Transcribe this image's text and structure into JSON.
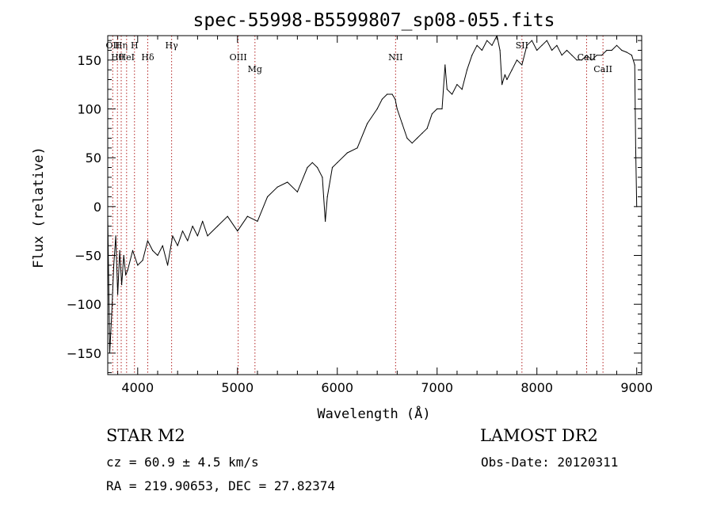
{
  "chart_data": {
    "type": "line",
    "title": "spec-55998-B5599807_sp08-055.fits",
    "xlabel": "Wavelength (Å)",
    "ylabel": "Flux (relative)",
    "xlim": [
      3700,
      9050
    ],
    "ylim": [
      -172,
      175
    ],
    "xticks": [
      4000,
      5000,
      6000,
      7000,
      8000,
      9000
    ],
    "yticks": [
      -150,
      -100,
      -50,
      0,
      50,
      100,
      150
    ],
    "grid": false,
    "series_color": "#000000",
    "line_color": "#b22222",
    "x": [
      3700,
      3720,
      3740,
      3760,
      3780,
      3800,
      3820,
      3840,
      3860,
      3880,
      3900,
      3950,
      4000,
      4050,
      4100,
      4150,
      4200,
      4250,
      4300,
      4350,
      4400,
      4450,
      4500,
      4550,
      4600,
      4650,
      4700,
      4800,
      4900,
      5000,
      5100,
      5200,
      5300,
      5400,
      5500,
      5600,
      5700,
      5750,
      5800,
      5850,
      5880,
      5900,
      5950,
      6000,
      6100,
      6200,
      6300,
      6400,
      6450,
      6500,
      6550,
      6580,
      6600,
      6650,
      6700,
      6750,
      6800,
      6850,
      6900,
      6950,
      7000,
      7050,
      7080,
      7100,
      7150,
      7200,
      7250,
      7300,
      7350,
      7400,
      7450,
      7500,
      7550,
      7600,
      7630,
      7650,
      7680,
      7700,
      7750,
      7800,
      7850,
      7900,
      7950,
      8000,
      8050,
      8100,
      8150,
      8200,
      8250,
      8300,
      8350,
      8400,
      8450,
      8500,
      8550,
      8600,
      8650,
      8700,
      8750,
      8800,
      8850,
      8900,
      8950,
      8980,
      8990,
      9000
    ],
    "y": [
      -10,
      -150,
      -110,
      -60,
      -30,
      -90,
      -45,
      -80,
      -50,
      -70,
      -65,
      -45,
      -60,
      -55,
      -35,
      -45,
      -50,
      -40,
      -60,
      -30,
      -40,
      -25,
      -35,
      -20,
      -30,
      -15,
      -30,
      -20,
      -10,
      -25,
      -10,
      -15,
      10,
      20,
      25,
      15,
      40,
      45,
      40,
      30,
      -15,
      10,
      40,
      45,
      55,
      60,
      85,
      100,
      110,
      115,
      115,
      110,
      100,
      85,
      70,
      65,
      70,
      75,
      80,
      95,
      100,
      100,
      145,
      120,
      115,
      125,
      120,
      140,
      155,
      165,
      160,
      170,
      165,
      175,
      160,
      125,
      135,
      130,
      140,
      150,
      145,
      165,
      170,
      160,
      165,
      170,
      160,
      165,
      155,
      160,
      155,
      150,
      150,
      155,
      150,
      155,
      155,
      160,
      160,
      165,
      160,
      158,
      155,
      145,
      60,
      0
    ],
    "lines": [
      {
        "wl": 3750,
        "label": "OII"
      },
      {
        "wl": 3797,
        "label": "Hθ"
      },
      {
        "wl": 3835,
        "label": "Hη"
      },
      {
        "wl": 3889,
        "label": "HeI"
      },
      {
        "wl": 3968,
        "label": "H"
      },
      {
        "wl": 4101,
        "label": "Hδ"
      },
      {
        "wl": 4340,
        "label": "Hγ"
      },
      {
        "wl": 5007,
        "label": "OIII"
      },
      {
        "wl": 5175,
        "label": "Mg"
      },
      {
        "wl": 6584,
        "label": "NII"
      },
      {
        "wl": 7850,
        "label": "SII"
      },
      {
        "wl": 8498,
        "label": "CaII"
      },
      {
        "wl": 8662,
        "label": "CaII"
      }
    ]
  },
  "footer": {
    "class_label": "STAR    M2",
    "survey": "LAMOST DR2",
    "cz": "cz = 60.9 ± 4.5 km/s",
    "obs_date": "Obs-Date: 20120311",
    "radec": "RA = 219.90653, DEC =  27.82374"
  }
}
